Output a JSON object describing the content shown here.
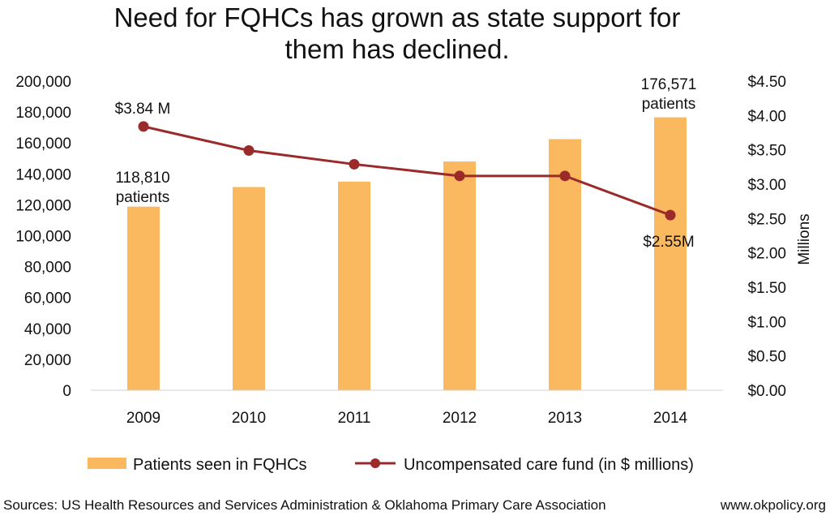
{
  "chart_data": {
    "type": "bar",
    "title_lines": [
      "Need for FQHCs has grown as state support for",
      "them has declined."
    ],
    "categories": [
      "2009",
      "2010",
      "2011",
      "2012",
      "2013",
      "2014"
    ],
    "series": [
      {
        "name": "Patients seen in FQHCs",
        "type": "bar",
        "axis": "left",
        "color": "#fbb95f",
        "values": [
          118810,
          131500,
          135000,
          148000,
          162500,
          176571
        ]
      },
      {
        "name": "Uncompensated care fund (in $ millions)",
        "type": "line",
        "axis": "right",
        "color": "#9b2a2a",
        "values": [
          3.84,
          3.49,
          3.29,
          3.12,
          3.12,
          2.55
        ]
      }
    ],
    "y_left": {
      "lim": [
        0,
        200000
      ],
      "ticks": [
        "0",
        "20,000",
        "40,000",
        "60,000",
        "80,000",
        "100,000",
        "120,000",
        "140,000",
        "160,000",
        "180,000",
        "200,000"
      ]
    },
    "y_right": {
      "lim": [
        0,
        4.5
      ],
      "label": "Millions",
      "ticks": [
        "$0.00",
        "$0.50",
        "$1.00",
        "$1.50",
        "$2.00",
        "$2.50",
        "$3.00",
        "$3.50",
        "$4.00",
        "$4.50"
      ]
    },
    "annotations": {
      "first_bar": [
        "118,810",
        "patients"
      ],
      "last_bar": [
        "176,571",
        "patients"
      ],
      "first_point": "$3.84 M",
      "last_point": "$2.55M"
    },
    "legend_position": "bottom",
    "grid": false
  },
  "footer": {
    "source": "Sources: US Health Resources and Services Administration & Oklahoma Primary Care Association",
    "site": "www.okpolicy.org"
  }
}
